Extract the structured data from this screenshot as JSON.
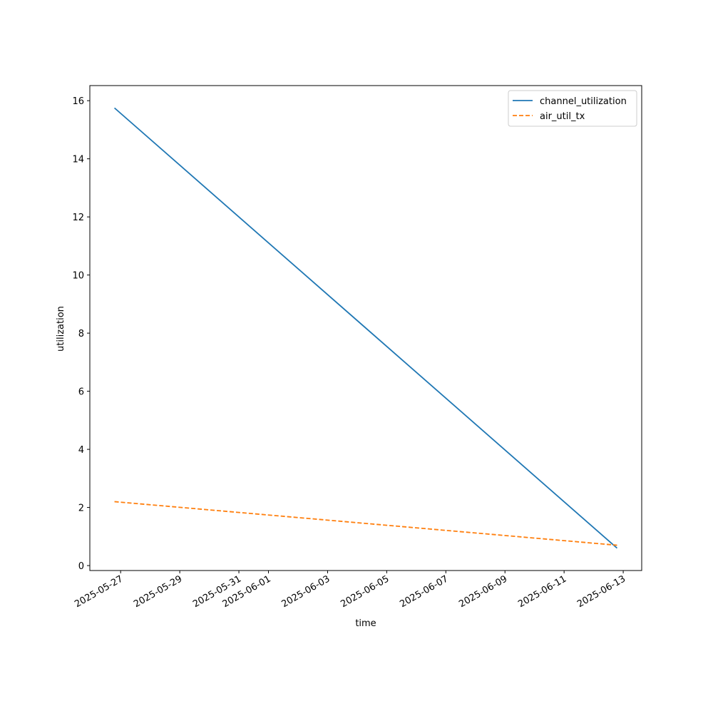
{
  "chart_data": {
    "type": "line",
    "x_label": "time",
    "y_label": "utilization",
    "x": [
      "2025-05-26T19:00",
      "2025-06-12T19:00"
    ],
    "series": [
      {
        "name": "channel_utilization",
        "color": "#1f77b4",
        "style": "solid",
        "values": [
          15.75,
          0.6
        ]
      },
      {
        "name": "air_util_tx",
        "color": "#ff7f0e",
        "style": "dashed",
        "values": [
          2.2,
          0.7
        ]
      }
    ],
    "xlim": [
      "2025-05-25T23:00",
      "2025-06-13T15:00"
    ],
    "xticks": [
      "2025-05-27",
      "2025-05-29",
      "2025-05-31",
      "2025-06-01",
      "2025-06-03",
      "2025-06-05",
      "2025-06-07",
      "2025-06-09",
      "2025-06-11",
      "2025-06-13"
    ],
    "ylim": [
      -0.17,
      16.52
    ],
    "yticks": [
      0,
      2,
      4,
      6,
      8,
      10,
      12,
      14,
      16
    ],
    "grid": false,
    "legend": "upper right"
  }
}
